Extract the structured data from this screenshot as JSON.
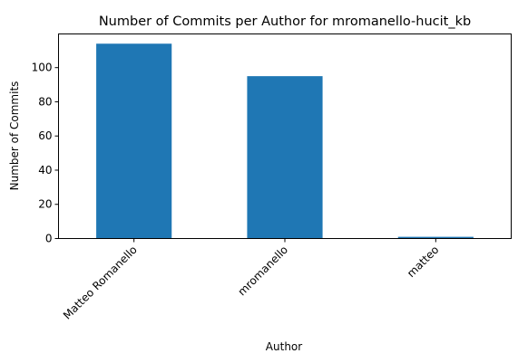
{
  "chart_data": {
    "type": "bar",
    "title": "Number of Commits per Author for mromanello-hucit_kb",
    "xlabel": "Author",
    "ylabel": "Number of Commits",
    "categories": [
      "Matteo Romanello",
      "mromanello",
      "matteo"
    ],
    "values": [
      114,
      95,
      1
    ],
    "ylim": [
      0,
      119.7
    ],
    "yticks": [
      0,
      20,
      40,
      60,
      80,
      100
    ],
    "bar_color": "#1f77b4",
    "grid": false,
    "legend": false
  }
}
